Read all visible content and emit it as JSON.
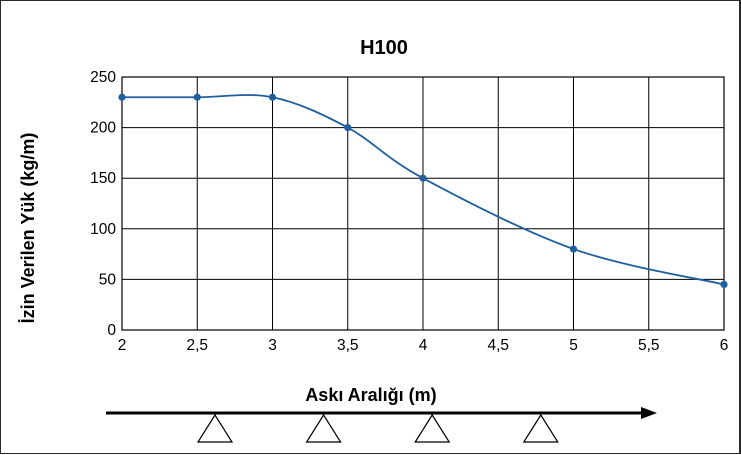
{
  "chart_data": {
    "type": "line",
    "title": "H100",
    "xlabel": "Askı Aralığı (m)",
    "ylabel": "İzin Verilen Yük (kg/m)",
    "x_ticks": [
      "2",
      "2,5",
      "3",
      "3,5",
      "4",
      "4,5",
      "5",
      "5,5",
      "6"
    ],
    "y_ticks": [
      "0",
      "50",
      "100",
      "150",
      "200",
      "250"
    ],
    "xlim": [
      2,
      6
    ],
    "ylim": [
      0,
      250
    ],
    "grid": true,
    "series": [
      {
        "color": "#1f5f9e",
        "x": [
          2,
          2.5,
          3,
          3.5,
          4,
          5,
          6
        ],
        "y": [
          230,
          230,
          230,
          200,
          150,
          80,
          45
        ]
      }
    ],
    "support_count": 4
  }
}
